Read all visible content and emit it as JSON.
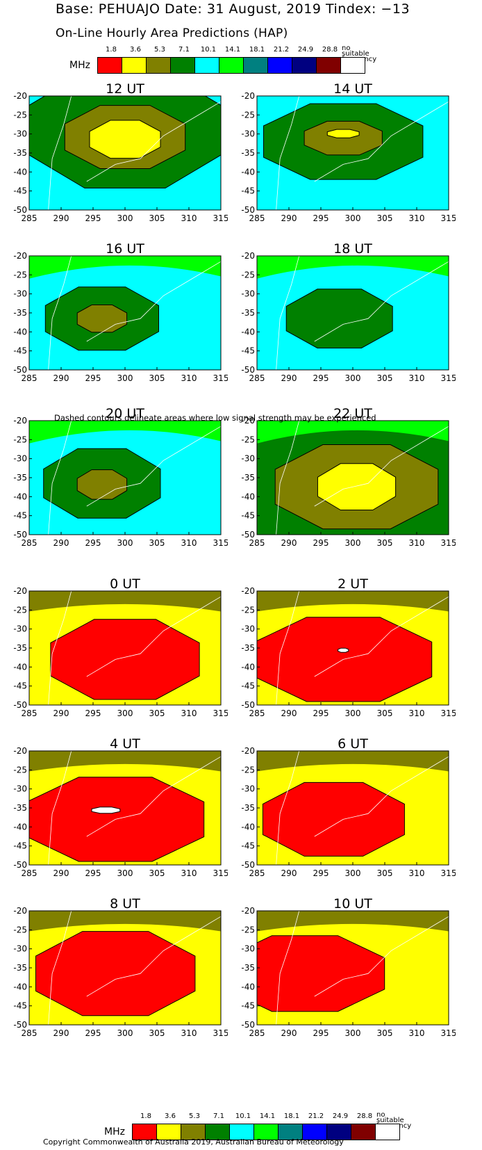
{
  "header": {
    "title": "Base: PEHUAJO Date: 31 August, 2019 Tindex: −13",
    "subtitle": "On-Line Hourly Area Predictions (HAP)"
  },
  "legend": {
    "unit": "MHz",
    "values": [
      "1.8",
      "3.6",
      "5.3",
      "7.1",
      "10.1",
      "14.1",
      "18.1",
      "21.2",
      "24.9",
      "28.8"
    ],
    "no_suitable": "no suitable frequency",
    "colors": [
      "#ff0000",
      "#ffff00",
      "#808000",
      "#008000",
      "#00ffff",
      "#00ff00",
      "#008080",
      "#0000ff",
      "#000080",
      "#800000",
      "#ffffff"
    ]
  },
  "note": "Dashed contours delineate areas where low signal strength may be experienced",
  "copyright": "Copyright Commonwealth of Australia 2019, Australian Bureau of Meteorology",
  "chart_data": [
    {
      "type": "heatmap",
      "title": "12 UT",
      "x_ticks": [
        285,
        290,
        295,
        300,
        305,
        310,
        315
      ],
      "y_ticks": [
        -20,
        -25,
        -30,
        -35,
        -40,
        -45,
        -50
      ],
      "xlim": [
        285,
        315
      ],
      "ylim": [
        -50,
        -20
      ],
      "background_band_MHz": "10.1",
      "contour_bands_MHz_outer_to_inner": [
        "7.1",
        "5.3",
        "3.6"
      ]
    },
    {
      "type": "heatmap",
      "title": "14 UT",
      "x_ticks": [
        285,
        290,
        295,
        300,
        305,
        310,
        315
      ],
      "y_ticks": [
        -20,
        -25,
        -30,
        -35,
        -40,
        -45,
        -50
      ],
      "xlim": [
        285,
        315
      ],
      "ylim": [
        -50,
        -20
      ],
      "background_band_MHz": "10.1",
      "contour_bands_MHz_outer_to_inner": [
        "7.1",
        "5.3",
        "3.6"
      ]
    },
    {
      "type": "heatmap",
      "title": "16 UT",
      "x_ticks": [
        285,
        290,
        295,
        300,
        305,
        310,
        315
      ],
      "y_ticks": [
        -20,
        -25,
        -30,
        -35,
        -40,
        -45,
        -50
      ],
      "xlim": [
        285,
        315
      ],
      "ylim": [
        -50,
        -20
      ],
      "background_band_MHz": "10.1",
      "contour_bands_MHz_outer_to_inner": [
        "7.1",
        "5.3"
      ]
    },
    {
      "type": "heatmap",
      "title": "18 UT",
      "x_ticks": [
        285,
        290,
        295,
        300,
        305,
        310,
        315
      ],
      "y_ticks": [
        -20,
        -25,
        -30,
        -35,
        -40,
        -45,
        -50
      ],
      "xlim": [
        285,
        315
      ],
      "ylim": [
        -50,
        -20
      ],
      "background_band_MHz": "10.1",
      "contour_bands_MHz_outer_to_inner": [
        "7.1"
      ]
    },
    {
      "type": "heatmap",
      "title": "20 UT",
      "x_ticks": [
        285,
        290,
        295,
        300,
        305,
        310,
        315
      ],
      "y_ticks": [
        -20,
        -25,
        -30,
        -35,
        -40,
        -45,
        -50
      ],
      "xlim": [
        285,
        315
      ],
      "ylim": [
        -50,
        -20
      ],
      "background_band_MHz": "10.1",
      "contour_bands_MHz_outer_to_inner": [
        "7.1",
        "5.3"
      ]
    },
    {
      "type": "heatmap",
      "title": "22 UT",
      "x_ticks": [
        285,
        290,
        295,
        300,
        305,
        310,
        315
      ],
      "y_ticks": [
        -20,
        -25,
        -30,
        -35,
        -40,
        -45,
        -50
      ],
      "xlim": [
        285,
        315
      ],
      "ylim": [
        -50,
        -20
      ],
      "background_band_MHz": "7.1",
      "contour_bands_MHz_outer_to_inner": [
        "5.3",
        "3.6"
      ]
    },
    {
      "type": "heatmap",
      "title": "0 UT",
      "x_ticks": [
        285,
        290,
        295,
        300,
        305,
        310,
        315
      ],
      "y_ticks": [
        -20,
        -25,
        -30,
        -35,
        -40,
        -45,
        -50
      ],
      "xlim": [
        285,
        315
      ],
      "ylim": [
        -50,
        -20
      ],
      "background_band_MHz": "3.6",
      "contour_bands_MHz_outer_to_inner": [
        "1.8"
      ]
    },
    {
      "type": "heatmap",
      "title": "2 UT",
      "x_ticks": [
        285,
        290,
        295,
        300,
        305,
        310,
        315
      ],
      "y_ticks": [
        -20,
        -25,
        -30,
        -35,
        -40,
        -45,
        -50
      ],
      "xlim": [
        285,
        315
      ],
      "ylim": [
        -50,
        -20
      ],
      "background_band_MHz": "3.6",
      "contour_bands_MHz_outer_to_inner": [
        "1.8",
        "no suitable frequency"
      ]
    },
    {
      "type": "heatmap",
      "title": "4 UT",
      "x_ticks": [
        285,
        290,
        295,
        300,
        305,
        310,
        315
      ],
      "y_ticks": [
        -20,
        -25,
        -30,
        -35,
        -40,
        -45,
        -50
      ],
      "xlim": [
        285,
        315
      ],
      "ylim": [
        -50,
        -20
      ],
      "background_band_MHz": "3.6",
      "contour_bands_MHz_outer_to_inner": [
        "1.8",
        "no suitable frequency"
      ]
    },
    {
      "type": "heatmap",
      "title": "6 UT",
      "x_ticks": [
        285,
        290,
        295,
        300,
        305,
        310,
        315
      ],
      "y_ticks": [
        -20,
        -25,
        -30,
        -35,
        -40,
        -45,
        -50
      ],
      "xlim": [
        285,
        315
      ],
      "ylim": [
        -50,
        -20
      ],
      "background_band_MHz": "3.6",
      "contour_bands_MHz_outer_to_inner": [
        "1.8"
      ]
    },
    {
      "type": "heatmap",
      "title": "8 UT",
      "x_ticks": [
        285,
        290,
        295,
        300,
        305,
        310,
        315
      ],
      "y_ticks": [
        -20,
        -25,
        -30,
        -35,
        -40,
        -45,
        -50
      ],
      "xlim": [
        285,
        315
      ],
      "ylim": [
        -50,
        -20
      ],
      "background_band_MHz": "3.6",
      "contour_bands_MHz_outer_to_inner": [
        "1.8"
      ]
    },
    {
      "type": "heatmap",
      "title": "10 UT",
      "x_ticks": [
        285,
        290,
        295,
        300,
        305,
        310,
        315
      ],
      "y_ticks": [
        -20,
        -25,
        -30,
        -35,
        -40,
        -45,
        -50
      ],
      "xlim": [
        285,
        315
      ],
      "ylim": [
        -50,
        -20
      ],
      "background_band_MHz": "3.6",
      "contour_bands_MHz_outer_to_inner": [
        "1.8"
      ]
    }
  ]
}
